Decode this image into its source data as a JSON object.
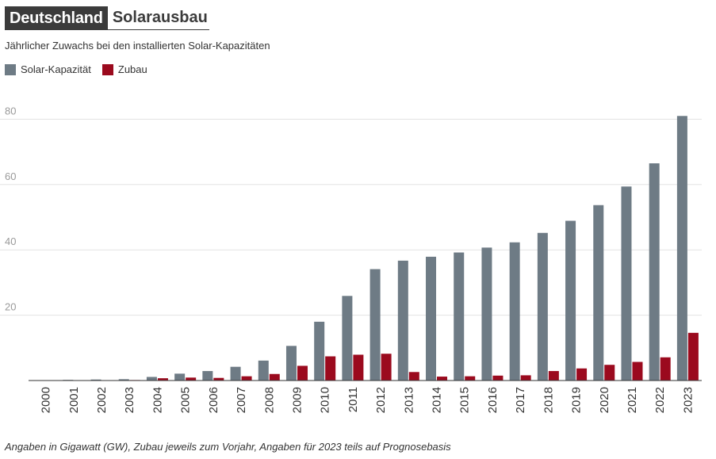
{
  "header": {
    "kicker": "Deutschland",
    "title": "Solarausbau",
    "subtitle": "Jährlicher Zuwachs bei den installierten Solar-Kapazitäten"
  },
  "colors": {
    "capacity": "#6e7b85",
    "addition": "#9b0a1e",
    "grid": "#e3e3e3",
    "axis": "#333333"
  },
  "chart_data": {
    "type": "bar",
    "title": "Solarausbau",
    "subtitle": "Jährlicher Zuwachs bei den installierten Solar-Kapazitäten",
    "xlabel": "",
    "ylabel": "",
    "ylim": [
      0,
      88
    ],
    "yticks": [
      20,
      40,
      60,
      80
    ],
    "grid": true,
    "legend_position": "top-left",
    "categories": [
      "2000",
      "2001",
      "2002",
      "2003",
      "2004",
      "2005",
      "2006",
      "2007",
      "2008",
      "2009",
      "2010",
      "2011",
      "2012",
      "2013",
      "2014",
      "2015",
      "2016",
      "2017",
      "2018",
      "2019",
      "2020",
      "2021",
      "2022",
      "2023"
    ],
    "series": [
      {
        "name": "Solar-Kapazität",
        "values": [
          0.1,
          0.2,
          0.3,
          0.4,
          1.1,
          2.1,
          2.9,
          4.2,
          6.1,
          10.6,
          18.0,
          25.9,
          34.1,
          36.7,
          37.9,
          39.2,
          40.7,
          42.3,
          45.2,
          48.9,
          53.7,
          59.4,
          66.5,
          81.0
        ]
      },
      {
        "name": "Zubau",
        "values": [
          0.05,
          0.1,
          0.1,
          0.15,
          0.7,
          0.9,
          0.8,
          1.3,
          2.0,
          4.5,
          7.4,
          7.9,
          8.2,
          2.6,
          1.2,
          1.3,
          1.5,
          1.6,
          2.9,
          3.7,
          4.8,
          5.7,
          7.1,
          14.6
        ]
      }
    ]
  },
  "footnote": "Angaben in Gigawatt (GW), Zubau jeweils zum Vorjahr, Angaben für 2023 teils auf Prognosebasis"
}
